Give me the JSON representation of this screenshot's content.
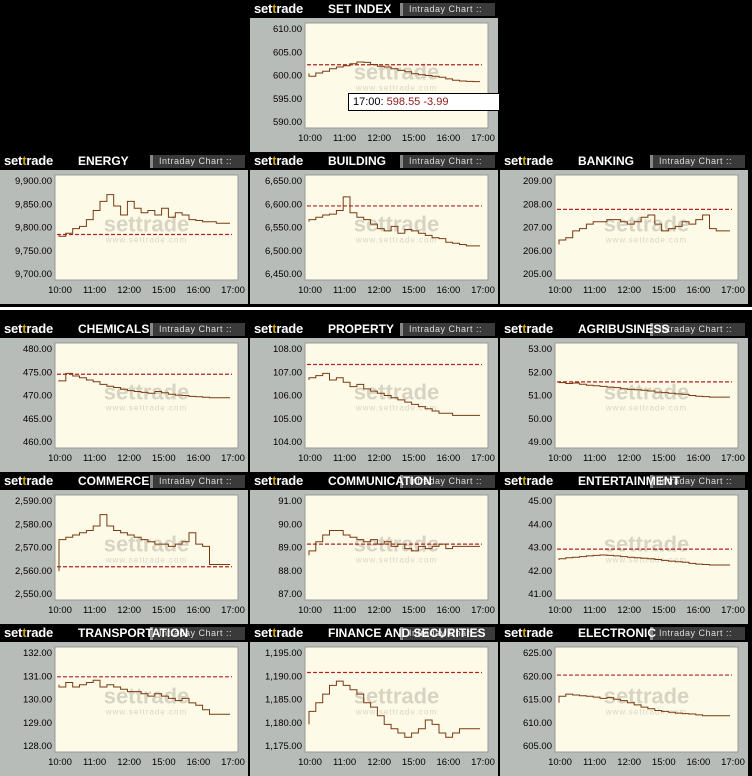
{
  "brand": {
    "logo_set": "set",
    "logo_t": "t",
    "logo_rade": "rade",
    "button_label": "Intraday Chart ::",
    "watermark": "settrade",
    "watermark_url": "www.settrade.com"
  },
  "tooltip": {
    "time": "17:00:",
    "value": "598.55",
    "change": "-3.99"
  },
  "colors": {
    "line": "#7a3a10",
    "ref_line": "#b22222",
    "plot_bg": "#fdfbe8",
    "frame": "#b8bcb8"
  },
  "chart_data": [
    {
      "type": "line",
      "title": "SET INDEX",
      "x_ticks": [
        "10:00",
        "11:00",
        "12:00",
        "15:00",
        "16:00",
        "17:00"
      ],
      "y_ticks": [
        "610.00",
        "605.00",
        "600.00",
        "595.00",
        "590.00"
      ],
      "ylim": [
        589,
        611
      ],
      "prev_close": 602.54,
      "values": [
        600.5,
        599.8,
        600.6,
        601.0,
        601.6,
        602.0,
        602.3,
        602.8,
        603.2,
        603.1,
        602.6,
        602.2,
        602.0,
        601.6,
        601.2,
        600.9,
        600.4,
        600.2,
        600.0,
        599.8,
        599.6,
        599.2,
        598.9,
        598.7,
        598.6,
        598.55
      ]
    },
    {
      "type": "line",
      "title": "ENERGY",
      "x_ticks": [
        "10:00",
        "11:00",
        "12:00",
        "15:00",
        "16:00",
        "17:00"
      ],
      "y_ticks": [
        "9,900.00",
        "9,850.00",
        "9,800.00",
        "9,750.00",
        "9,700.00"
      ],
      "ylim": [
        9700,
        9905
      ],
      "prev_close": 9787,
      "values": [
        9785,
        9783,
        9790,
        9800,
        9805,
        9820,
        9840,
        9860,
        9875,
        9850,
        9830,
        9860,
        9845,
        9835,
        9840,
        9830,
        9845,
        9825,
        9835,
        9830,
        9820,
        9818,
        9815,
        9815,
        9812,
        9812
      ]
    },
    {
      "type": "line",
      "title": "BUILDING",
      "x_ticks": [
        "10:00",
        "11:00",
        "12:00",
        "15:00",
        "16:00",
        "17:00"
      ],
      "y_ticks": [
        "6,650.00",
        "6,600.00",
        "6,550.00",
        "6,500.00",
        "6,450.00"
      ],
      "ylim": [
        6450,
        6655
      ],
      "prev_close": 6600,
      "values": [
        6565,
        6570,
        6575,
        6580,
        6582,
        6590,
        6620,
        6585,
        6575,
        6570,
        6560,
        6550,
        6545,
        6555,
        6540,
        6548,
        6545,
        6540,
        6535,
        6530,
        6528,
        6520,
        6518,
        6515,
        6512,
        6512
      ]
    },
    {
      "type": "line",
      "title": "BANKING",
      "x_ticks": [
        "10:00",
        "11:00",
        "12:00",
        "15:00",
        "16:00",
        "17:00"
      ],
      "y_ticks": [
        "209.00",
        "208.00",
        "207.00",
        "206.00",
        "205.00"
      ],
      "ylim": [
        205,
        209.1
      ],
      "prev_close": 207.85,
      "values": [
        206.3,
        206.5,
        206.6,
        206.9,
        207.0,
        207.2,
        207.3,
        207.3,
        207.4,
        207.4,
        207.3,
        207.2,
        207.3,
        207.5,
        207.6,
        207.2,
        206.9,
        207.0,
        207.1,
        207.3,
        207.2,
        207.4,
        207.6,
        207.0,
        206.9,
        206.9
      ]
    },
    {
      "type": "line",
      "title": "CHEMICALS",
      "x_ticks": [
        "10:00",
        "11:00",
        "12:00",
        "15:00",
        "16:00",
        "17:00"
      ],
      "y_ticks": [
        "480.00",
        "475.00",
        "470.00",
        "465.00",
        "460.00"
      ],
      "ylim": [
        460,
        481
      ],
      "prev_close": 475.3,
      "values": [
        474.0,
        473.8,
        475.5,
        474.9,
        474.5,
        474.0,
        473.6,
        473.0,
        472.6,
        472.3,
        471.9,
        471.6,
        471.4,
        471.2,
        471.0,
        471.4,
        471.1,
        470.8,
        470.6,
        470.5,
        470.3,
        470.2,
        470.1,
        470.0,
        470.0,
        470.0
      ]
    },
    {
      "type": "line",
      "title": "PROPERTY",
      "x_ticks": [
        "10:00",
        "11:00",
        "12:00",
        "15:00",
        "16:00",
        "17:00"
      ],
      "y_ticks": [
        "108.00",
        "107.00",
        "106.00",
        "105.00",
        "104.00"
      ],
      "ylim": [
        104,
        108.2
      ],
      "prev_close": 107.5,
      "values": [
        106.8,
        106.9,
        107.0,
        107.1,
        106.8,
        106.9,
        106.7,
        106.5,
        106.6,
        106.4,
        106.3,
        106.2,
        106.1,
        106.0,
        105.9,
        105.8,
        105.7,
        105.6,
        105.5,
        105.4,
        105.3,
        105.3,
        105.2,
        105.2,
        105.2,
        105.2
      ]
    },
    {
      "type": "line",
      "title": "AGRIBUSINESS",
      "x_ticks": [
        "10:00",
        "11:00",
        "12:00",
        "15:00",
        "16:00",
        "17:00"
      ],
      "y_ticks": [
        "53.00",
        "52.00",
        "51.00",
        "50.00",
        "49.00"
      ],
      "ylim": [
        49,
        53.1
      ],
      "prev_close": 51.65,
      "values": [
        51.6,
        51.62,
        51.58,
        51.6,
        51.55,
        51.5,
        51.48,
        51.45,
        51.42,
        51.4,
        51.35,
        51.32,
        51.3,
        51.28,
        51.25,
        51.2,
        51.18,
        51.15,
        51.12,
        51.1,
        51.05,
        51.02,
        51.0,
        50.98,
        50.98,
        50.98
      ]
    },
    {
      "type": "line",
      "title": "COMMERCE",
      "x_ticks": [
        "10:00",
        "11:00",
        "12:00",
        "15:00",
        "16:00",
        "17:00"
      ],
      "y_ticks": [
        "2,590.00",
        "2,580.00",
        "2,570.00",
        "2,560.00",
        "2,550.00"
      ],
      "ylim": [
        2550,
        2591
      ],
      "prev_close": 2562,
      "values": [
        2560,
        2574,
        2575,
        2576,
        2577,
        2578,
        2580,
        2585,
        2580,
        2578,
        2577,
        2576,
        2575,
        2574,
        2573,
        2572,
        2572,
        2571,
        2572,
        2573,
        2577,
        2572,
        2571,
        2563,
        2563,
        2563
      ]
    },
    {
      "type": "line",
      "title": "COMMUNICATION",
      "x_ticks": [
        "10:00",
        "11:00",
        "12:00",
        "15:00",
        "16:00",
        "17:00"
      ],
      "y_ticks": [
        "91.00",
        "90.00",
        "89.00",
        "88.00",
        "87.00"
      ],
      "ylim": [
        87,
        91.1
      ],
      "prev_close": 89.2,
      "values": [
        88.7,
        88.9,
        89.3,
        89.6,
        89.8,
        89.8,
        89.6,
        89.5,
        89.4,
        89.3,
        89.4,
        89.2,
        89.3,
        89.1,
        89.2,
        89.0,
        88.9,
        89.1,
        89.0,
        89.1,
        89.2,
        89.0,
        89.1,
        89.1,
        89.1,
        89.1
      ]
    },
    {
      "type": "line",
      "title": "ENTERTAINMENT",
      "x_ticks": [
        "10:00",
        "11:00",
        "12:00",
        "15:00",
        "16:00",
        "17:00"
      ],
      "y_ticks": [
        "45.00",
        "44.00",
        "43.00",
        "42.00",
        "41.00"
      ],
      "ylim": [
        41,
        45.1
      ],
      "prev_close": 42.98,
      "values": [
        42.5,
        42.55,
        42.6,
        42.62,
        42.65,
        42.68,
        42.7,
        42.72,
        42.7,
        42.68,
        42.65,
        42.62,
        42.6,
        42.58,
        42.55,
        42.52,
        42.48,
        42.45,
        42.42,
        42.4,
        42.35,
        42.32,
        42.3,
        42.28,
        42.28,
        42.28
      ]
    },
    {
      "type": "line",
      "title": "TRANSPORTATION",
      "x_ticks": [
        "10:00",
        "11:00",
        "12:00",
        "15:00",
        "16:00",
        "17:00"
      ],
      "y_ticks": [
        "132.00",
        "131.00",
        "130.00",
        "129.00",
        "128.00"
      ],
      "ylim": [
        128,
        132.1
      ],
      "prev_close": 131.05,
      "values": [
        130.7,
        130.6,
        130.8,
        130.6,
        130.7,
        130.8,
        130.9,
        130.6,
        130.7,
        130.6,
        130.5,
        130.4,
        130.4,
        130.3,
        130.2,
        130.3,
        130.2,
        130.1,
        130.0,
        130.1,
        129.9,
        129.8,
        129.6,
        129.4,
        129.4,
        129.4
      ]
    },
    {
      "type": "line",
      "title": "FINANCE AND SECURITIES",
      "x_ticks": [
        "10:00",
        "11:00",
        "12:00",
        "15:00",
        "16:00",
        "17:00"
      ],
      "y_ticks": [
        "1,195.00",
        "1,190.00",
        "1,185.00",
        "1,180.00",
        "1,175.00"
      ],
      "ylim": [
        1174,
        1195.5
      ],
      "prev_close": 1191,
      "values": [
        1179,
        1182,
        1184,
        1186,
        1188,
        1189,
        1188,
        1187,
        1186,
        1184,
        1183,
        1181,
        1179,
        1178,
        1177,
        1176,
        1177,
        1178,
        1180,
        1179,
        1177,
        1176,
        1177,
        1178,
        1178,
        1178
      ]
    },
    {
      "type": "line",
      "title": "ELECTRONIC",
      "x_ticks": [
        "10:00",
        "11:00",
        "12:00",
        "15:00",
        "16:00",
        "17:00"
      ],
      "y_ticks": [
        "625.00",
        "620.00",
        "615.00",
        "610.00",
        "605.00"
      ],
      "ylim": [
        604,
        625.5
      ],
      "prev_close": 620.4,
      "values": [
        614.0,
        615.5,
        616.0,
        615.8,
        615.6,
        615.5,
        615.3,
        615.0,
        615.2,
        614.8,
        614.5,
        614.0,
        613.5,
        613.0,
        612.6,
        612.2,
        612.0,
        611.8,
        611.6,
        611.5,
        611.4,
        611.2,
        611.0,
        611.0,
        611.0,
        611.0
      ]
    }
  ]
}
